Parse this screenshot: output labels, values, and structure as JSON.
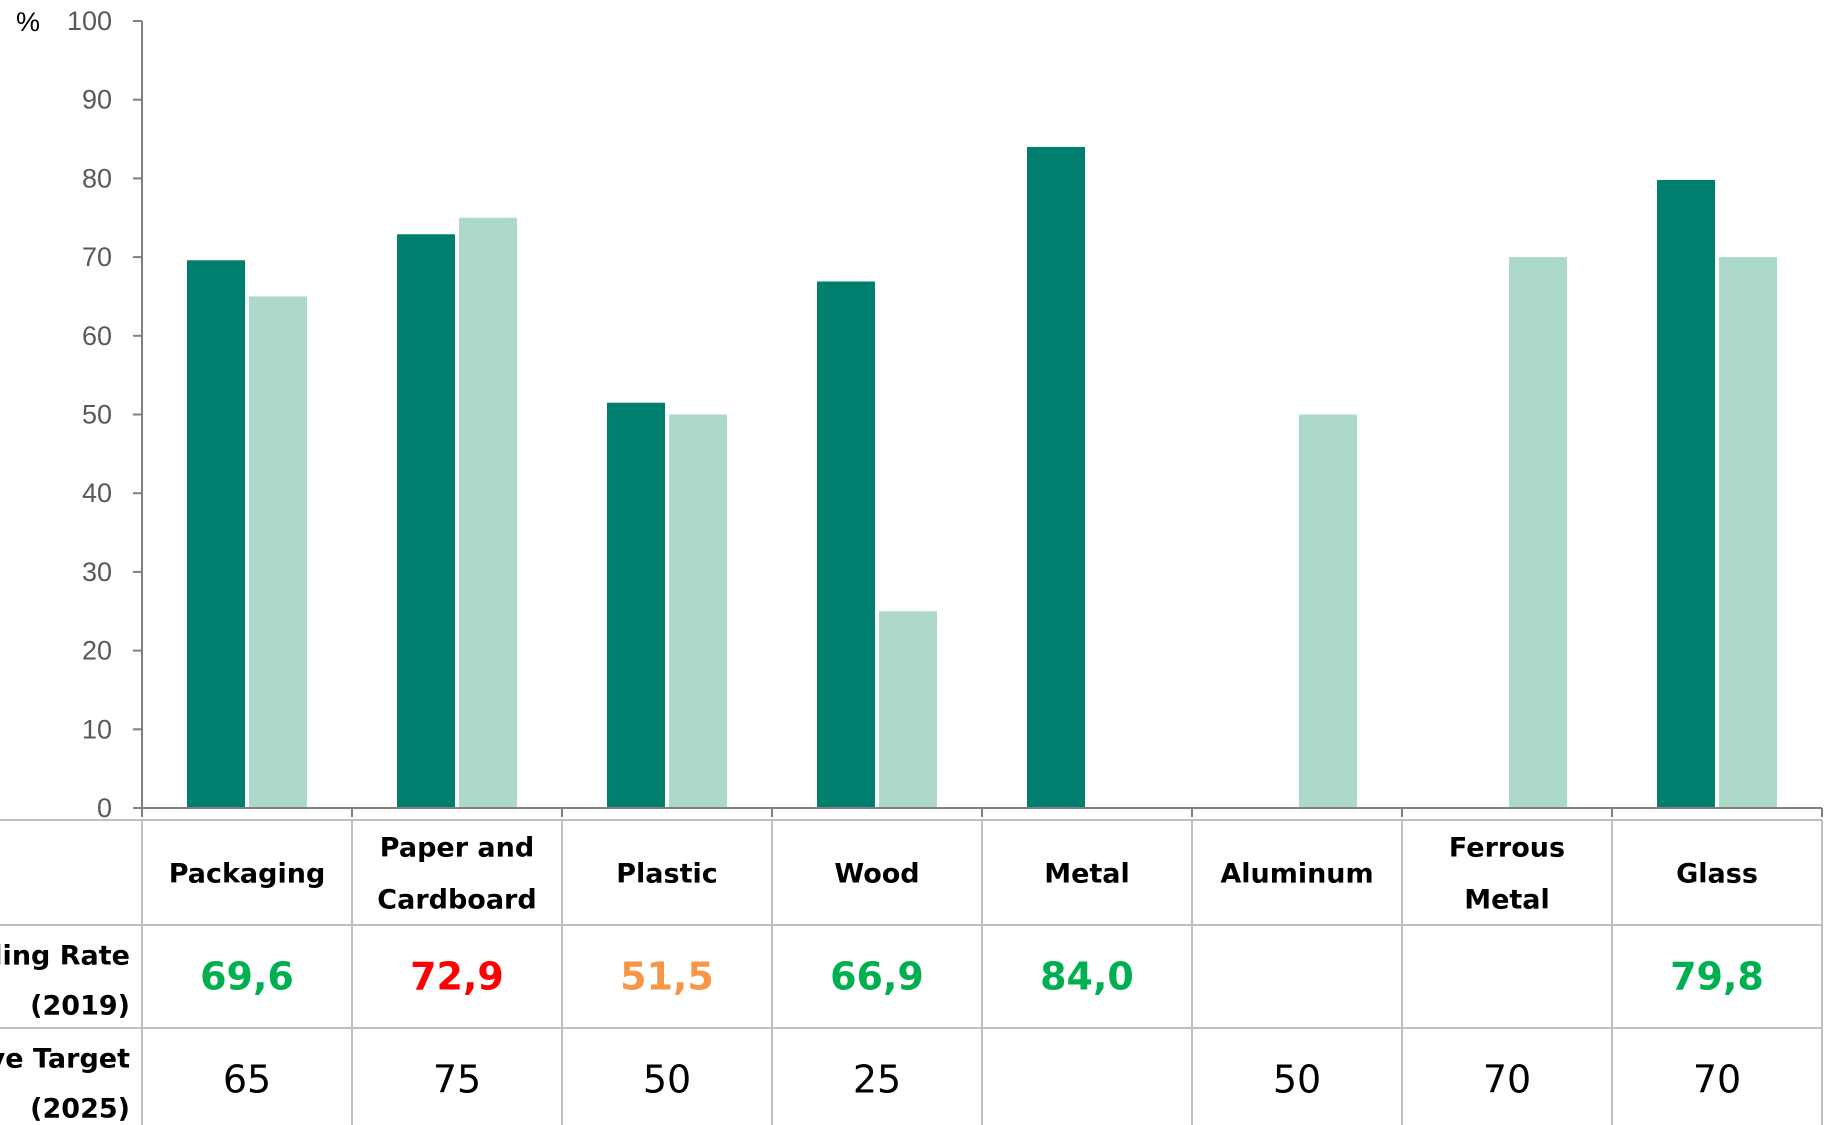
{
  "chart_data": {
    "type": "bar",
    "unit_label": "%",
    "ylim": [
      0,
      100
    ],
    "yticks": [
      0,
      10,
      20,
      30,
      40,
      50,
      60,
      70,
      80,
      90,
      100
    ],
    "categories": [
      [
        "Packaging"
      ],
      [
        "Paper and",
        "Cardboard"
      ],
      [
        "Plastic"
      ],
      [
        "Wood"
      ],
      [
        "Metal"
      ],
      [
        "Aluminum"
      ],
      [
        "Ferrous",
        "Metal"
      ],
      [
        "Glass"
      ]
    ],
    "series": [
      {
        "label_lines": [
          "Recycling Rate",
          "(2019)"
        ],
        "values": [
          69.6,
          72.9,
          51.5,
          66.9,
          84.0,
          null,
          null,
          79.8
        ],
        "display": [
          "69,6",
          "72,9",
          "51,5",
          "66,9",
          "84,0",
          "",
          "",
          "79,8"
        ],
        "display_colors": [
          "#00b050",
          "#ff0000",
          "#f79646",
          "#00b050",
          "#00b050",
          "",
          "",
          "#00b050"
        ],
        "color": "#007e6e"
      },
      {
        "label_lines": [
          "EU Directive Target",
          "(2025)"
        ],
        "values": [
          65,
          75,
          50,
          25,
          null,
          50,
          70,
          70
        ],
        "display": [
          "65",
          "75",
          "50",
          "25",
          "",
          "50",
          "70",
          "70"
        ],
        "color": "#acd9ca"
      }
    ],
    "grid": false,
    "legend": "data-table"
  }
}
